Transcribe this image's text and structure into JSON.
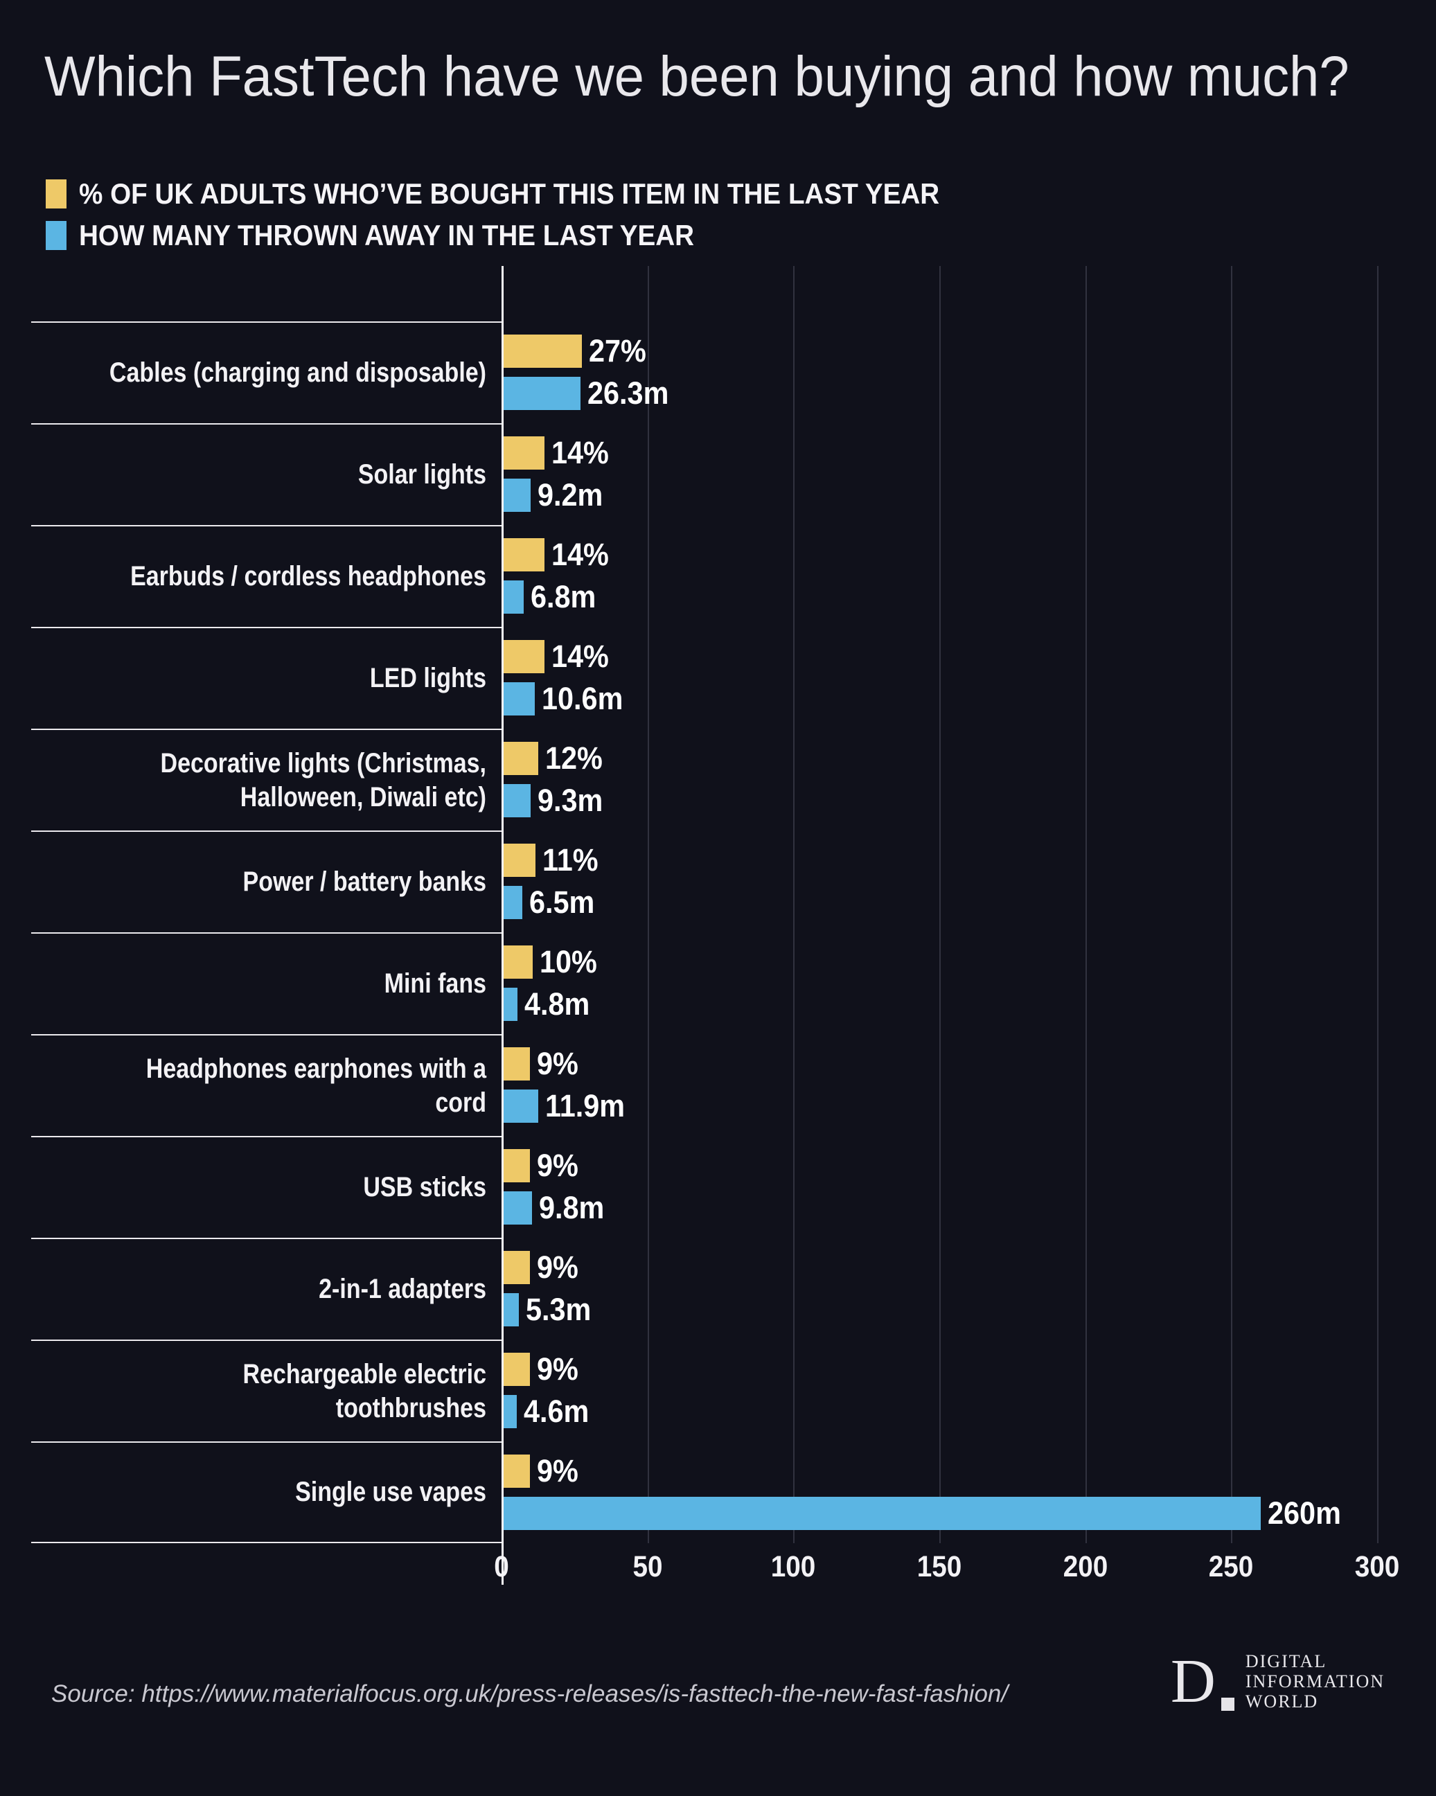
{
  "title": "Which FastTech have we been buying and how much?",
  "legend": {
    "items": [
      {
        "label": "% OF UK ADULTS WHO’VE BOUGHT THIS ITEM IN THE LAST YEAR",
        "color": "#eec968"
      },
      {
        "label": "HOW MANY THROWN AWAY IN THE LAST YEAR",
        "color": "#5bb5e3"
      }
    ]
  },
  "chart_data": {
    "type": "bar",
    "orientation": "horizontal",
    "title": "Which FastTech have we been buying and how much?",
    "categories": [
      "Cables (charging and disposable)",
      "Solar lights",
      "Earbuds / cordless headphones",
      "LED lights",
      "Decorative lights (Christmas, Halloween, Diwali etc)",
      "Power / battery banks",
      "Mini fans",
      "Headphones earphones with a cord",
      "USB sticks",
      "2-in-1 adapters",
      "Rechargeable electric toothbrushes",
      "Single use vapes"
    ],
    "series": [
      {
        "name": "% of UK adults who've bought this item in the last year",
        "unit": "%",
        "color": "#eec968",
        "values": [
          27,
          14,
          14,
          14,
          12,
          11,
          10,
          9,
          9,
          9,
          9,
          9
        ],
        "labels": [
          "27%",
          "14%",
          "14%",
          "14%",
          "12%",
          "11%",
          "10%",
          "9%",
          "9%",
          "9%",
          "9%",
          "9%"
        ]
      },
      {
        "name": "How many thrown away in the last year",
        "unit": "millions",
        "color": "#5bb5e3",
        "values": [
          26.3,
          9.2,
          6.8,
          10.6,
          9.3,
          6.5,
          4.8,
          11.9,
          9.8,
          5.3,
          4.6,
          260
        ],
        "labels": [
          "26.3m",
          "9.2m",
          "6.8m",
          "10.6m",
          "9.3m",
          "6.5m",
          "4.8m",
          "11.9m",
          "9.8m",
          "5.3m",
          "4.6m",
          "260m"
        ]
      }
    ],
    "xlim": [
      0,
      300
    ],
    "x_ticks": [
      "0",
      "50",
      "100",
      "150",
      "200",
      "250",
      "300"
    ],
    "gridlines": true,
    "legend_position": "top-left"
  },
  "source": "Source: https://www.materialfocus.org.uk/press-releases/is-fasttech-the-new-fast-fashion/",
  "logo": {
    "monogram": "D",
    "lines": [
      "DIGITAL",
      "INFORMATION",
      "WORLD"
    ]
  }
}
